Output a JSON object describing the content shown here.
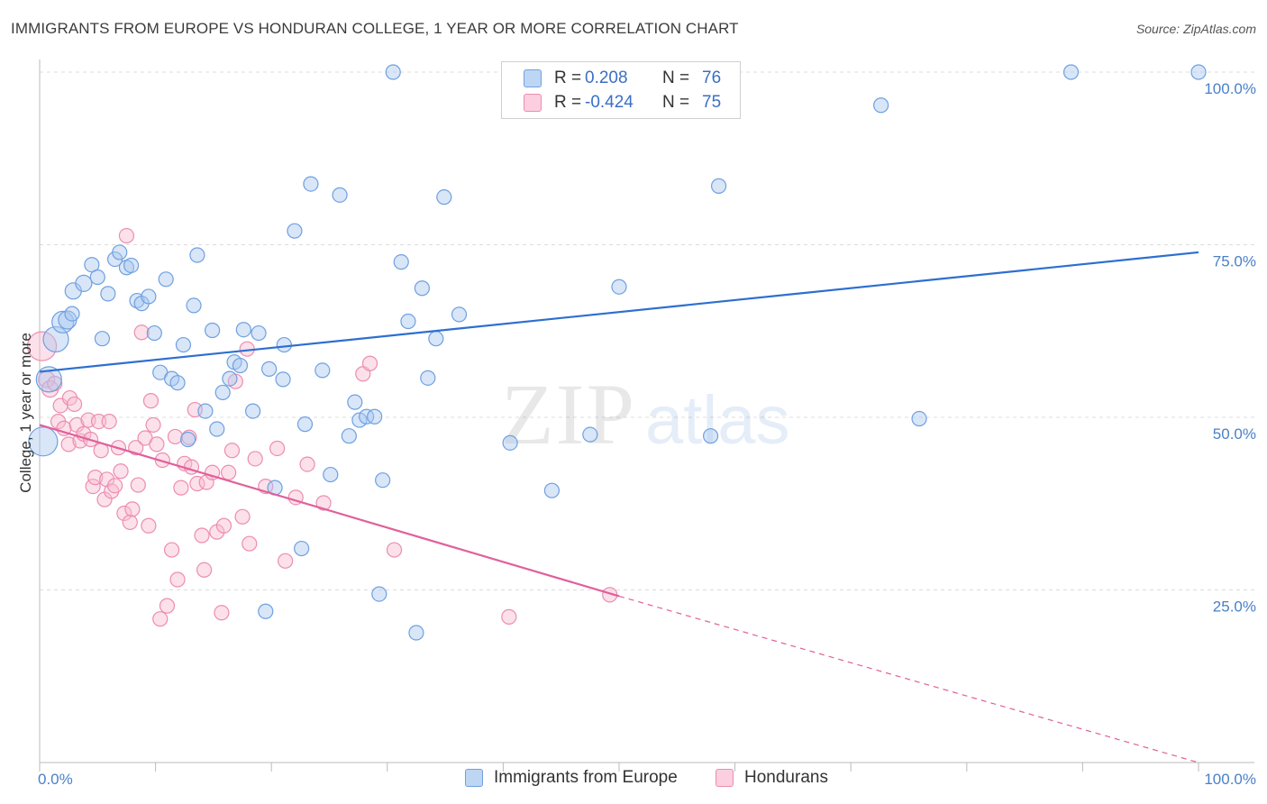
{
  "title": "IMMIGRANTS FROM EUROPE VS HONDURAN COLLEGE, 1 YEAR OR MORE CORRELATION CHART",
  "source": "Source: ZipAtlas.com",
  "watermark": {
    "zip": "ZIP",
    "atlas": "atlas"
  },
  "colors": {
    "blue_fill": "#a8c8f0",
    "blue_stroke": "#6fa0e0",
    "blue_line": "#2d6fd0",
    "pink_fill": "#f8bcd0",
    "pink_stroke": "#ec8db0",
    "pink_line": "#e0609a",
    "tick_text": "#4a80c8",
    "grid": "#dcdcdc"
  },
  "legend": {
    "rows": [
      {
        "r_label": "R = ",
        "r_value": "0.208",
        "n_label": "N = ",
        "n_value": "76",
        "color": "blue"
      },
      {
        "r_label": "R = ",
        "r_value": "-0.424",
        "n_label": "N = ",
        "n_value": "75",
        "color": "pink"
      }
    ]
  },
  "bottom_legend": [
    {
      "label": "Immigrants from Europe",
      "color": "blue"
    },
    {
      "label": "Hondurans",
      "color": "pink"
    }
  ],
  "chart_data": {
    "type": "scatter",
    "title": "IMMIGRANTS FROM EUROPE VS HONDURAN COLLEGE, 1 YEAR OR MORE CORRELATION CHART",
    "xlabel": "",
    "ylabel": "College, 1 year or more",
    "xlim": [
      0,
      100
    ],
    "ylim": [
      0,
      100
    ],
    "x_tick_labels": [
      "0.0%",
      "100.0%"
    ],
    "y_tick_labels": [
      "25.0%",
      "50.0%",
      "75.0%",
      "100.0%"
    ],
    "y_tick_values": [
      25,
      50,
      75,
      100
    ],
    "grid": true,
    "legend_position": "top-center",
    "series": [
      {
        "name": "Immigrants from Europe",
        "color": "blue",
        "trendline": {
          "x": [
            0,
            100
          ],
          "y": [
            56.6,
            73.9
          ],
          "style": "solid"
        },
        "points": [
          [
            0.3,
            46.5,
            16
          ],
          [
            0.8,
            55.5,
            14
          ],
          [
            1.4,
            61.3,
            14
          ],
          [
            2.0,
            63.8,
            12
          ],
          [
            2.4,
            64.1,
            10
          ],
          [
            2.8,
            65.0,
            8
          ],
          [
            2.9,
            68.3,
            9
          ],
          [
            3.8,
            69.4,
            9
          ],
          [
            4.5,
            72.1,
            8
          ],
          [
            5.0,
            70.3,
            8
          ],
          [
            5.4,
            61.4,
            8
          ],
          [
            5.9,
            67.9,
            8
          ],
          [
            6.5,
            72.9,
            8
          ],
          [
            6.9,
            73.9,
            8
          ],
          [
            7.5,
            71.7,
            8
          ],
          [
            7.9,
            72.0,
            8
          ],
          [
            8.4,
            66.9,
            8
          ],
          [
            8.8,
            66.5,
            8
          ],
          [
            9.4,
            67.5,
            8
          ],
          [
            9.9,
            62.2,
            8
          ],
          [
            10.4,
            56.5,
            8
          ],
          [
            10.9,
            70.0,
            8
          ],
          [
            11.4,
            55.6,
            8
          ],
          [
            11.9,
            55.0,
            8
          ],
          [
            12.4,
            60.5,
            8
          ],
          [
            12.8,
            46.8,
            8
          ],
          [
            13.3,
            66.2,
            8
          ],
          [
            13.6,
            73.5,
            8
          ],
          [
            14.3,
            50.9,
            8
          ],
          [
            14.9,
            62.6,
            8
          ],
          [
            15.3,
            48.3,
            8
          ],
          [
            15.8,
            53.6,
            8
          ],
          [
            16.4,
            55.6,
            8
          ],
          [
            16.8,
            58.0,
            8
          ],
          [
            17.3,
            57.5,
            8
          ],
          [
            17.6,
            62.7,
            8
          ],
          [
            18.4,
            50.9,
            8
          ],
          [
            18.9,
            62.2,
            8
          ],
          [
            19.5,
            21.9,
            8
          ],
          [
            19.8,
            57.0,
            8
          ],
          [
            20.3,
            39.8,
            8
          ],
          [
            21.0,
            55.5,
            8
          ],
          [
            21.1,
            60.5,
            8
          ],
          [
            22.0,
            77.0,
            8
          ],
          [
            22.6,
            31.0,
            8
          ],
          [
            22.9,
            49.0,
            8
          ],
          [
            23.4,
            83.8,
            8
          ],
          [
            24.4,
            56.8,
            8
          ],
          [
            25.1,
            41.7,
            8
          ],
          [
            25.9,
            82.2,
            8
          ],
          [
            26.7,
            47.3,
            8
          ],
          [
            27.2,
            52.2,
            8
          ],
          [
            27.6,
            49.6,
            8
          ],
          [
            28.2,
            50.1,
            8
          ],
          [
            28.9,
            50.1,
            8
          ],
          [
            29.3,
            24.4,
            8
          ],
          [
            29.6,
            40.9,
            8
          ],
          [
            30.5,
            100.0,
            8
          ],
          [
            31.2,
            72.5,
            8
          ],
          [
            31.8,
            63.9,
            8
          ],
          [
            32.5,
            18.8,
            8
          ],
          [
            33.0,
            68.7,
            8
          ],
          [
            33.5,
            55.7,
            8
          ],
          [
            34.2,
            61.4,
            8
          ],
          [
            34.9,
            81.9,
            8
          ],
          [
            36.2,
            64.9,
            8
          ],
          [
            40.6,
            46.3,
            8
          ],
          [
            44.2,
            39.4,
            8
          ],
          [
            47.5,
            47.5,
            8
          ],
          [
            50.0,
            68.9,
            8
          ],
          [
            57.9,
            47.3,
            8
          ],
          [
            58.6,
            83.5,
            8
          ],
          [
            72.6,
            95.2,
            8
          ],
          [
            75.9,
            49.8,
            8
          ],
          [
            89.0,
            100.0,
            8
          ],
          [
            100.0,
            100.0,
            8
          ]
        ]
      },
      {
        "name": "Hondurans",
        "color": "pink",
        "trendline": {
          "x": [
            0,
            50
          ],
          "y": [
            48.9,
            24.1
          ],
          "style": "solid",
          "extension": {
            "x": [
              50,
              100
            ],
            "y": [
              24.1,
              0
            ],
            "style": "dashed"
          }
        },
        "points": [
          [
            0.2,
            60.3,
            16
          ],
          [
            0.6,
            55.5,
            9
          ],
          [
            0.9,
            54.1,
            9
          ],
          [
            1.3,
            54.9,
            8
          ],
          [
            1.6,
            49.4,
            8
          ],
          [
            1.8,
            51.7,
            8
          ],
          [
            2.1,
            48.4,
            8
          ],
          [
            2.5,
            46.1,
            8
          ],
          [
            2.6,
            52.8,
            8
          ],
          [
            3.0,
            51.9,
            8
          ],
          [
            3.2,
            48.9,
            8
          ],
          [
            3.5,
            46.6,
            8
          ],
          [
            3.8,
            47.6,
            8
          ],
          [
            4.2,
            49.6,
            8
          ],
          [
            4.4,
            46.8,
            8
          ],
          [
            4.6,
            40.0,
            8
          ],
          [
            4.8,
            41.3,
            8
          ],
          [
            5.1,
            49.4,
            8
          ],
          [
            5.3,
            45.2,
            8
          ],
          [
            5.6,
            38.1,
            8
          ],
          [
            5.8,
            41.0,
            8
          ],
          [
            6.0,
            49.4,
            8
          ],
          [
            6.2,
            39.3,
            8
          ],
          [
            6.5,
            40.1,
            8
          ],
          [
            6.8,
            45.6,
            8
          ],
          [
            7.0,
            42.2,
            8
          ],
          [
            7.3,
            36.1,
            8
          ],
          [
            7.5,
            76.3,
            8
          ],
          [
            7.8,
            34.8,
            8
          ],
          [
            8.0,
            36.7,
            8
          ],
          [
            8.3,
            45.6,
            8
          ],
          [
            8.5,
            40.2,
            8
          ],
          [
            8.8,
            62.3,
            8
          ],
          [
            9.1,
            47.0,
            8
          ],
          [
            9.4,
            34.3,
            8
          ],
          [
            9.6,
            52.4,
            8
          ],
          [
            9.8,
            48.9,
            8
          ],
          [
            10.1,
            46.1,
            8
          ],
          [
            10.4,
            20.8,
            8
          ],
          [
            10.6,
            43.8,
            8
          ],
          [
            11.0,
            22.7,
            8
          ],
          [
            11.4,
            30.8,
            8
          ],
          [
            11.7,
            47.2,
            8
          ],
          [
            11.9,
            26.5,
            8
          ],
          [
            12.2,
            39.8,
            8
          ],
          [
            12.5,
            43.3,
            8
          ],
          [
            12.9,
            47.1,
            8
          ],
          [
            13.1,
            42.8,
            8
          ],
          [
            13.4,
            51.1,
            8
          ],
          [
            13.6,
            40.4,
            8
          ],
          [
            14.0,
            32.9,
            8
          ],
          [
            14.2,
            27.9,
            8
          ],
          [
            14.4,
            40.6,
            8
          ],
          [
            14.9,
            42.0,
            8
          ],
          [
            15.3,
            33.4,
            8
          ],
          [
            15.7,
            21.7,
            8
          ],
          [
            15.9,
            34.3,
            8
          ],
          [
            16.3,
            42.0,
            8
          ],
          [
            16.6,
            45.2,
            8
          ],
          [
            16.9,
            55.2,
            8
          ],
          [
            17.5,
            35.6,
            8
          ],
          [
            17.9,
            59.9,
            8
          ],
          [
            18.1,
            31.7,
            8
          ],
          [
            18.6,
            44.0,
            8
          ],
          [
            19.5,
            40.0,
            8
          ],
          [
            20.5,
            45.5,
            8
          ],
          [
            21.2,
            29.2,
            8
          ],
          [
            22.1,
            38.4,
            8
          ],
          [
            23.1,
            43.2,
            8
          ],
          [
            24.5,
            37.6,
            8
          ],
          [
            27.9,
            56.3,
            8
          ],
          [
            28.5,
            57.8,
            8
          ],
          [
            30.6,
            30.8,
            8
          ],
          [
            40.5,
            21.1,
            8
          ],
          [
            49.2,
            24.3,
            8
          ]
        ]
      }
    ]
  }
}
